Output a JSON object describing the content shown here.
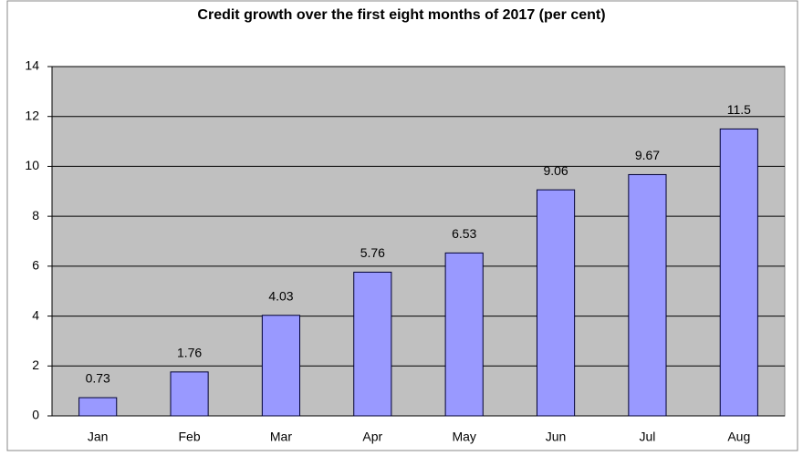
{
  "chart_data": {
    "type": "bar",
    "title": "Credit growth over the first eight months of 2017 (per cent)",
    "categories": [
      "Jan",
      "Feb",
      "Mar",
      "Apr",
      "May",
      "Jun",
      "Jul",
      "Aug"
    ],
    "values": [
      0.73,
      1.76,
      4.03,
      5.76,
      6.53,
      9.06,
      9.67,
      11.5
    ],
    "color": "#9999ff",
    "ylim": [
      0,
      14
    ],
    "yticks": [
      0,
      2,
      4,
      6,
      8,
      10,
      12,
      14
    ],
    "grid": true
  }
}
